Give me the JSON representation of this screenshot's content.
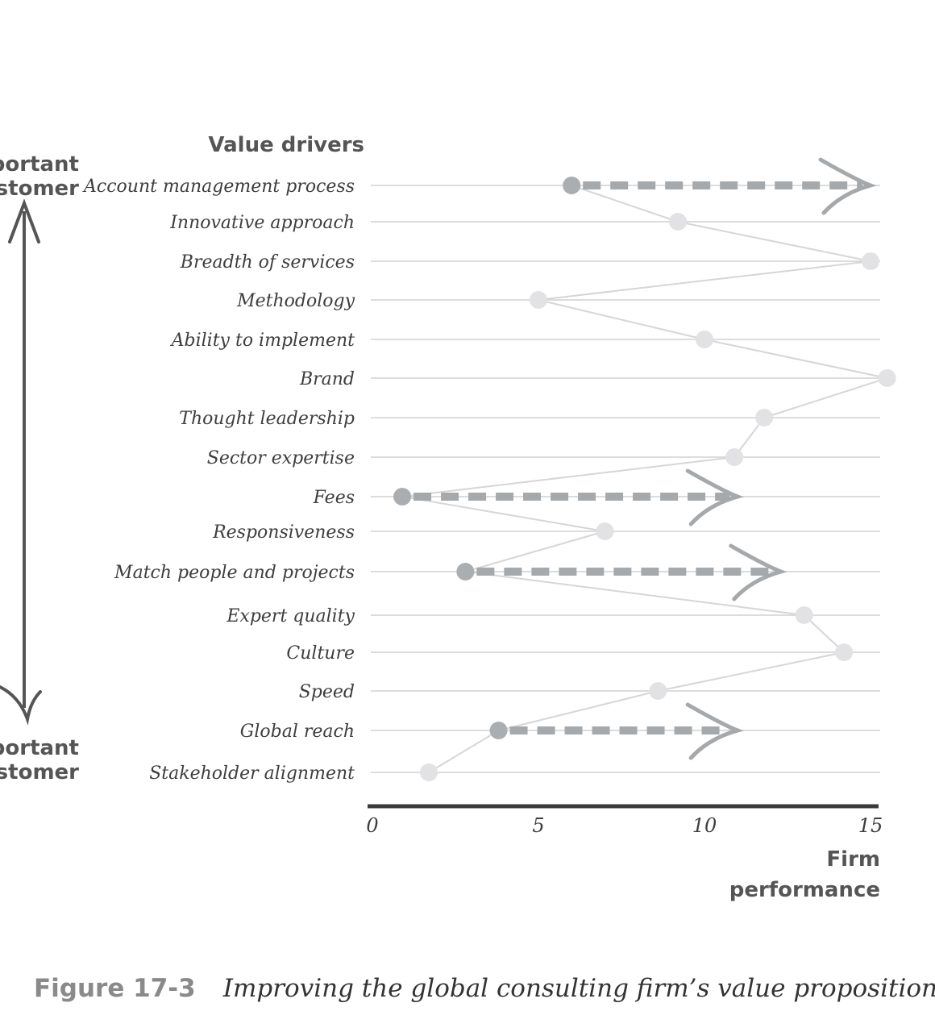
{
  "chart_data": {
    "type": "line",
    "header": "Value drivers",
    "y_axis_top_label": [
      "mportant",
      "ustomer"
    ],
    "y_axis_bottom_label": [
      "mportant",
      "ustomer"
    ],
    "xlabel": [
      "Firm",
      "performance"
    ],
    "xlim": [
      0,
      15
    ],
    "xticks": [
      "0",
      "5",
      "10",
      "15"
    ],
    "grid": true,
    "categories": [
      "Account management process",
      "Innovative approach",
      "Breadth of services",
      "Methodology",
      "Ability to implement",
      "Brand",
      "Thought leadership",
      "Sector expertise",
      "Fees",
      "Responsiveness",
      "Match people and projects",
      "Expert quality",
      "Culture",
      "Speed",
      "Global reach",
      "Stakeholder alignment"
    ],
    "values": [
      6,
      9.2,
      15,
      5,
      10,
      15.5,
      11.8,
      10.9,
      0.9,
      7,
      2.8,
      13,
      14.2,
      8.6,
      3.8,
      1.7
    ],
    "improvements": [
      {
        "category": "Account management process",
        "from": 6,
        "to": 15
      },
      {
        "category": "Fees",
        "from": 0.9,
        "to": 11
      },
      {
        "category": "Match people and projects",
        "from": 2.8,
        "to": 12.3
      },
      {
        "category": "Global reach",
        "from": 3.8,
        "to": 11
      }
    ],
    "colors": {
      "profile_line": "#d6d6d6",
      "profile_point": "#e2e2e4",
      "highlight_point": "#aaaeb0",
      "arrow": "#a6a9ab",
      "axis": "#3a3a3a",
      "grid": "#d0d0d0"
    }
  },
  "caption": {
    "figure": "Figure 17-3",
    "text": "Improving the global consulting firm’s value proposition"
  }
}
